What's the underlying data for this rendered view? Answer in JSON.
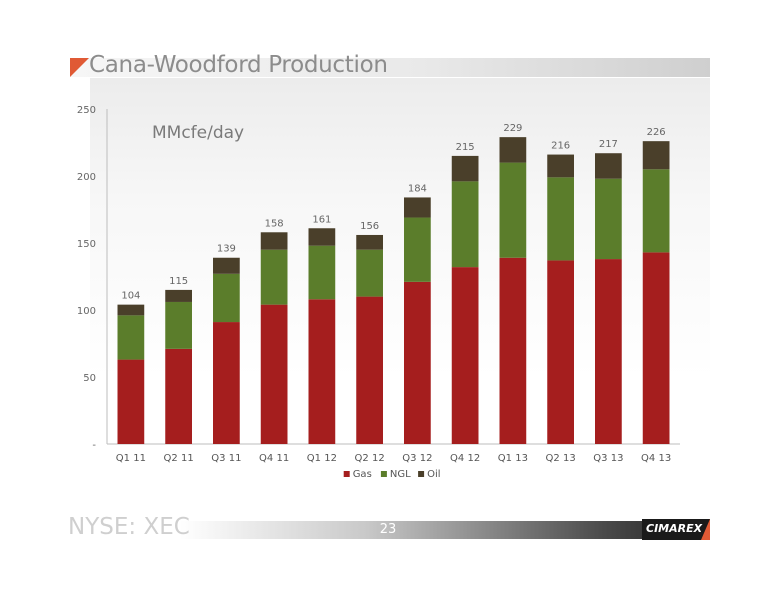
{
  "header": {
    "title": "Cana-Woodford Production"
  },
  "footer": {
    "ticker": "NYSE: XEC",
    "page_number": "23",
    "logo_text": "CIMAREX"
  },
  "colors": {
    "gas": "#a51e1e",
    "ngl": "#5b7d2b",
    "oil": "#4a3f2a",
    "accent": "#e05a35"
  },
  "chart_data": {
    "type": "bar",
    "stacked": true,
    "annotation": "MMcfe/day",
    "categories": [
      "Q1 11",
      "Q2 11",
      "Q3 11",
      "Q4 11",
      "Q1 12",
      "Q2 12",
      "Q3 12",
      "Q4 12",
      "Q1 13",
      "Q2 13",
      "Q3 13",
      "Q4 13"
    ],
    "series": [
      {
        "name": "Gas",
        "color": "#a51e1e",
        "values": [
          63,
          71,
          91,
          104,
          108,
          110,
          121,
          132,
          139,
          137,
          138,
          143
        ]
      },
      {
        "name": "NGL",
        "color": "#5b7d2b",
        "values": [
          33,
          35,
          36,
          41,
          40,
          35,
          48,
          64,
          71,
          62,
          60,
          62
        ]
      },
      {
        "name": "Oil",
        "color": "#4a3f2a",
        "values": [
          8,
          9,
          12,
          13,
          13,
          11,
          15,
          19,
          19,
          17,
          19,
          21
        ]
      }
    ],
    "totals": [
      104,
      115,
      139,
      158,
      161,
      156,
      184,
      215,
      229,
      216,
      217,
      226
    ],
    "y_ticks": [
      "-",
      "50",
      "100",
      "150",
      "200",
      "250"
    ],
    "ylim": [
      0,
      250
    ],
    "legend_position": "bottom"
  }
}
